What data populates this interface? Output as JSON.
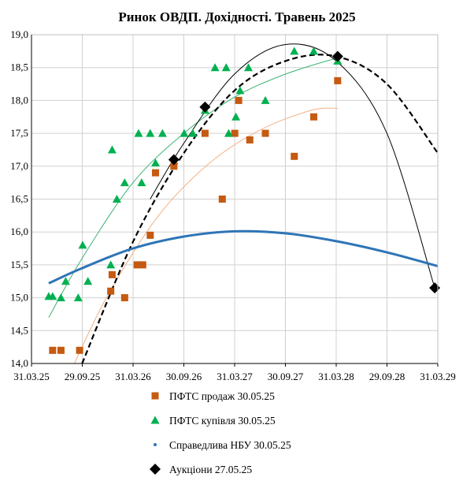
{
  "chart_data": {
    "type": "scatter",
    "title": "Ринок ОВДП. Дохідності. Травень 2025",
    "xlabel": "",
    "ylabel": "",
    "x_ticks": [
      "31.03.25",
      "29.09.25",
      "31.03.26",
      "30.09.26",
      "31.03.27",
      "30.09.27",
      "31.03.28",
      "29.09.28",
      "31.03.29"
    ],
    "y_ticks": [
      "14,0",
      "14,5",
      "15,0",
      "15,5",
      "16,0",
      "16,5",
      "17,0",
      "17,5",
      "18,0",
      "18,5",
      "19,0"
    ],
    "xlim": [
      "2025-03-31",
      "2029-03-31"
    ],
    "ylim": [
      14.0,
      19.0
    ],
    "grid": "vertical and horizontal",
    "legend_position": "bottom",
    "series": [
      {
        "name": "ПФТС продаж 30.05.25",
        "marker": "square",
        "color": "#C55A11",
        "trendline_color": "#F4B183",
        "points": [
          {
            "x": "2025-06-15",
            "y": 14.2
          },
          {
            "x": "2025-07-15",
            "y": 14.2
          },
          {
            "x": "2025-09-20",
            "y": 14.2
          },
          {
            "x": "2026-01-10",
            "y": 15.1
          },
          {
            "x": "2026-01-15",
            "y": 15.35
          },
          {
            "x": "2026-03-01",
            "y": 15.0
          },
          {
            "x": "2026-04-15",
            "y": 15.5
          },
          {
            "x": "2026-05-05",
            "y": 15.5
          },
          {
            "x": "2026-06-01",
            "y": 15.95
          },
          {
            "x": "2026-06-20",
            "y": 16.9
          },
          {
            "x": "2026-08-25",
            "y": 17.0
          },
          {
            "x": "2026-12-15",
            "y": 17.5
          },
          {
            "x": "2027-02-15",
            "y": 16.5
          },
          {
            "x": "2027-04-01",
            "y": 17.5
          },
          {
            "x": "2027-04-15",
            "y": 18.0
          },
          {
            "x": "2027-05-25",
            "y": 17.4
          },
          {
            "x": "2027-07-20",
            "y": 17.5
          },
          {
            "x": "2027-11-01",
            "y": 17.15
          },
          {
            "x": "2028-01-10",
            "y": 17.75
          },
          {
            "x": "2028-04-05",
            "y": 18.3
          }
        ]
      },
      {
        "name": "ПФТС купівля 30.05.25",
        "marker": "triangle",
        "color": "#00B050",
        "trendline_color": "#3CB371",
        "points": [
          {
            "x": "2025-06-01",
            "y": 15.02
          },
          {
            "x": "2025-06-15",
            "y": 15.02
          },
          {
            "x": "2025-07-15",
            "y": 15.0
          },
          {
            "x": "2025-08-01",
            "y": 15.25
          },
          {
            "x": "2025-09-15",
            "y": 15.0
          },
          {
            "x": "2025-10-01",
            "y": 15.8
          },
          {
            "x": "2025-10-20",
            "y": 15.25
          },
          {
            "x": "2026-01-10",
            "y": 15.5
          },
          {
            "x": "2026-01-15",
            "y": 17.25
          },
          {
            "x": "2026-02-01",
            "y": 16.5
          },
          {
            "x": "2026-03-01",
            "y": 16.75
          },
          {
            "x": "2026-04-20",
            "y": 17.5
          },
          {
            "x": "2026-05-01",
            "y": 16.75
          },
          {
            "x": "2026-06-01",
            "y": 17.5
          },
          {
            "x": "2026-06-20",
            "y": 17.05
          },
          {
            "x": "2026-07-15",
            "y": 17.5
          },
          {
            "x": "2026-10-01",
            "y": 17.5
          },
          {
            "x": "2026-11-01",
            "y": 17.5
          },
          {
            "x": "2026-12-15",
            "y": 17.85
          },
          {
            "x": "2027-01-20",
            "y": 18.5
          },
          {
            "x": "2027-03-01",
            "y": 18.5
          },
          {
            "x": "2027-03-10",
            "y": 17.5
          },
          {
            "x": "2027-04-05",
            "y": 17.75
          },
          {
            "x": "2027-04-20",
            "y": 18.15
          },
          {
            "x": "2027-05-20",
            "y": 18.5
          },
          {
            "x": "2027-07-20",
            "y": 18.0
          },
          {
            "x": "2027-11-01",
            "y": 18.75
          },
          {
            "x": "2028-01-10",
            "y": 18.75
          },
          {
            "x": "2028-04-05",
            "y": 18.6
          }
        ]
      },
      {
        "name": "Справедлива НБУ 30.05.25",
        "marker": "dot",
        "color": "#2E75B6",
        "points": [
          {
            "x": "2025-06-01",
            "y": 15.22
          },
          {
            "x": "2025-09-29",
            "y": 15.45
          },
          {
            "x": "2026-03-31",
            "y": 15.75
          },
          {
            "x": "2026-09-30",
            "y": 15.93
          },
          {
            "x": "2027-03-31",
            "y": 16.01
          },
          {
            "x": "2027-09-30",
            "y": 15.98
          },
          {
            "x": "2028-03-31",
            "y": 15.86
          },
          {
            "x": "2028-09-29",
            "y": 15.69
          },
          {
            "x": "2029-03-31",
            "y": 15.48
          }
        ]
      },
      {
        "name": "Аукціони 27.05.25",
        "marker": "diamond",
        "color": "#000000",
        "points": [
          {
            "x": "2026-08-25",
            "y": 17.1
          },
          {
            "x": "2026-12-15",
            "y": 17.9
          },
          {
            "x": "2028-04-05",
            "y": 18.67
          },
          {
            "x": "2029-03-20",
            "y": 15.15
          }
        ]
      }
    ],
    "trendlines": [
      {
        "for": "ПФТС продаж 30.05.25",
        "style": "thin solid",
        "color": "#F4B183",
        "points": [
          {
            "x": "2025-09-01",
            "y": 14.0
          },
          {
            "x": "2026-01-01",
            "y": 15.05
          },
          {
            "x": "2026-07-01",
            "y": 16.25
          },
          {
            "x": "2027-01-01",
            "y": 17.05
          },
          {
            "x": "2027-07-01",
            "y": 17.55
          },
          {
            "x": "2028-01-01",
            "y": 17.85
          },
          {
            "x": "2028-04-05",
            "y": 17.88
          }
        ]
      },
      {
        "for": "ПФТС купівля 30.05.25",
        "style": "thin solid",
        "color": "#3CB371",
        "points": [
          {
            "x": "2025-06-01",
            "y": 14.7
          },
          {
            "x": "2025-09-29",
            "y": 15.6
          },
          {
            "x": "2026-03-31",
            "y": 16.75
          },
          {
            "x": "2026-09-30",
            "y": 17.5
          },
          {
            "x": "2027-03-31",
            "y": 18.05
          },
          {
            "x": "2027-09-30",
            "y": 18.4
          },
          {
            "x": "2028-04-05",
            "y": 18.65
          }
        ]
      },
      {
        "for": "Аукціони 27.05.25",
        "style": "dashed",
        "color": "#000000",
        "points": [
          {
            "x": "2025-09-29",
            "y": 14.0
          },
          {
            "x": "2026-03-31",
            "y": 15.85
          },
          {
            "x": "2026-09-30",
            "y": 17.2
          },
          {
            "x": "2027-03-31",
            "y": 18.15
          },
          {
            "x": "2027-09-30",
            "y": 18.6
          },
          {
            "x": "2028-03-31",
            "y": 18.67
          },
          {
            "x": "2028-09-29",
            "y": 18.25
          },
          {
            "x": "2029-03-31",
            "y": 17.2
          }
        ]
      },
      {
        "for": "Аукціони 27.05.25",
        "style": "thin solid",
        "color": "#000000",
        "points": [
          {
            "x": "2026-06-01",
            "y": 16.5
          },
          {
            "x": "2026-09-30",
            "y": 17.35
          },
          {
            "x": "2027-03-31",
            "y": 18.4
          },
          {
            "x": "2027-09-30",
            "y": 18.85
          },
          {
            "x": "2028-03-31",
            "y": 18.6
          },
          {
            "x": "2028-09-29",
            "y": 17.5
          },
          {
            "x": "2029-03-20",
            "y": 15.15
          }
        ]
      }
    ]
  }
}
